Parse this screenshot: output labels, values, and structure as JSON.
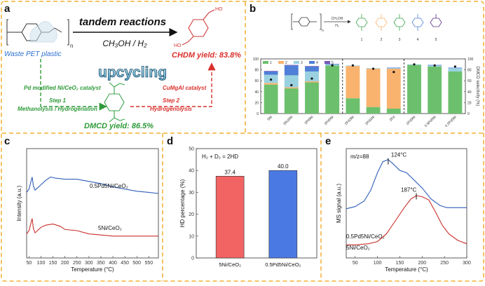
{
  "colors": {
    "frame": "#f2b134",
    "blue_text": "#2e6fcf",
    "green_text": "#2e9a39",
    "red_text": "#d9302c",
    "red_mol": "#d23a3a",
    "green_mol": "#3aa34a",
    "purple_mol": "#5b2c83",
    "bar_green": "#6cc06d",
    "bar_orange": "#f9b36e",
    "bar_lightblue": "#9ad1e0",
    "bar_blue": "#4f7fd6",
    "bar_purple": "#7a5ab8",
    "curve_blue": "#2f5db8",
    "curve_red": "#c8302c",
    "bar_red_fill": "#f26363",
    "bar_blue_fill": "#4b79e3"
  },
  "panel_a": {
    "label": "a",
    "reaction_title": "tandem reactions",
    "reaction_condition": "CH₃OH / H₂",
    "waste_label": "Waste PET plastic",
    "polymer_subscript": "n",
    "chdm_yield": "CHDM yield: 83.8%",
    "center_word": "upcycling",
    "step1_catalyst": "Pd modified Ni/CeO₂ catalyst",
    "step1_title": "Step 1",
    "step1_desc": "Methanolysis / Hydrogenation",
    "step2_catalyst": "CuMgAl catalyst",
    "step2_title": "Step 2",
    "step2_desc": "Hydrogenolysis",
    "dmcd_yield": "DMCD yield: 86.5%"
  },
  "panel_b": {
    "label": "b",
    "scheme_condition_top": "CH₃OH",
    "scheme_condition_bottom": "H₂",
    "scheme_subscript": "n",
    "product_numbers": [
      "1",
      "2",
      "3",
      "4",
      "5"
    ],
    "chart_data": {
      "type": "bar",
      "stacked": true,
      "categories": [
        "5Ni",
        "2Ru5Ni",
        "2Pt5Ni",
        "2Pd5Ni",
        "2Pd3Ni",
        "2Pd1Ni",
        "2Pd",
        "1Pd5Ni",
        "0.5Pd5Ni",
        "0.2Pd5Ni"
      ],
      "legend": [
        "1",
        "2",
        "3",
        "4",
        "5"
      ],
      "legend_position": "top-left",
      "ylabel_left": "",
      "ylabel_right": "DMCD selectivity (%)",
      "ylim": [
        0,
        100
      ],
      "yticks": [
        0,
        20,
        40,
        60,
        80,
        100
      ],
      "series": [
        {
          "name": "1",
          "values": [
            53,
            46,
            57,
            88,
            28,
            12,
            9,
            89,
            86,
            77
          ]
        },
        {
          "name": "2",
          "values": [
            3,
            2,
            2,
            0,
            59,
            70,
            73,
            0,
            0,
            0
          ]
        },
        {
          "name": "3",
          "values": [
            15,
            22,
            18,
            2,
            1,
            1,
            1,
            1,
            2,
            6
          ]
        },
        {
          "name": "4",
          "values": [
            6,
            18,
            9,
            1,
            0,
            0,
            1,
            0,
            1,
            1
          ]
        },
        {
          "name": "5",
          "values": [
            1,
            1,
            1,
            0,
            0,
            0,
            0,
            0,
            0,
            0
          ]
        }
      ],
      "selectivity": [
        62,
        52,
        64,
        88,
        88,
        82,
        76,
        90,
        88,
        86
      ],
      "group_dividers_after": [
        3,
        6
      ]
    }
  },
  "panel_c": {
    "label": "c",
    "chart_data": {
      "type": "line",
      "xlabel": "Temperature (°C)",
      "ylabel": "Intensity (a.u.)",
      "xlim": [
        40,
        590
      ],
      "xticks": [
        50,
        100,
        150,
        200,
        250,
        300,
        350,
        400,
        450,
        500,
        550
      ],
      "series": [
        {
          "name": "0.5Pd5Ni/CeO₂",
          "x": [
            40,
            50,
            58,
            63,
            68,
            75,
            85,
            100,
            120,
            140,
            160,
            200,
            250,
            300,
            350,
            400,
            450,
            500,
            550,
            590
          ],
          "y": [
            0.6,
            0.63,
            0.7,
            0.74,
            0.66,
            0.62,
            0.64,
            0.67,
            0.71,
            0.74,
            0.73,
            0.72,
            0.72,
            0.7,
            0.68,
            0.65,
            0.63,
            0.61,
            0.6,
            0.59
          ]
        },
        {
          "name": "5Ni/CeO₂",
          "x": [
            40,
            50,
            58,
            63,
            68,
            75,
            85,
            100,
            120,
            150,
            180,
            200,
            250,
            300,
            350,
            400,
            450,
            500,
            550,
            590
          ],
          "y": [
            0.22,
            0.25,
            0.32,
            0.36,
            0.27,
            0.23,
            0.25,
            0.28,
            0.3,
            0.31,
            0.29,
            0.26,
            0.25,
            0.22,
            0.21,
            0.2,
            0.2,
            0.2,
            0.2,
            0.2
          ]
        }
      ]
    }
  },
  "panel_d": {
    "label": "d",
    "chart_data": {
      "type": "bar",
      "title": "H₂ + D₂ = 2HD",
      "categories": [
        "5Ni/CeO₂",
        "0.5Pd5Ni/CeO₂"
      ],
      "values": [
        37.4,
        40.0
      ],
      "value_labels": [
        "37.4",
        "40.0"
      ],
      "xlabel": "",
      "ylabel": "HD percentage (%)",
      "ylim": [
        0,
        50
      ],
      "yticks": [
        0,
        10,
        20,
        30,
        40,
        50
      ]
    }
  },
  "panel_e": {
    "label": "e",
    "chart_data": {
      "type": "line",
      "annotation": "m/z=88",
      "xlabel": "Temperature (°C)",
      "ylabel": "MS signal (a.u.)",
      "xlim": [
        30,
        300
      ],
      "xticks": [
        50,
        100,
        150,
        200,
        250,
        300
      ],
      "peak_labels": [
        {
          "text": "124°C",
          "x": 124,
          "y": 0.9
        },
        {
          "text": "187°C",
          "x": 187,
          "y": 0.58
        }
      ],
      "series": [
        {
          "name": "0.5Pd5Ni/CeO₂",
          "x": [
            30,
            50,
            70,
            85,
            100,
            112,
            124,
            135,
            150,
            165,
            180,
            200,
            220,
            240,
            255,
            270,
            285,
            300
          ],
          "y": [
            0.45,
            0.47,
            0.52,
            0.62,
            0.78,
            0.88,
            0.9,
            0.86,
            0.8,
            0.78,
            0.72,
            0.64,
            0.54,
            0.48,
            0.46,
            0.46,
            0.46,
            0.46
          ]
        },
        {
          "name": "5Ni/CeO₂",
          "x": [
            30,
            50,
            80,
            100,
            120,
            140,
            160,
            175,
            187,
            200,
            215,
            230,
            245,
            260,
            280,
            300
          ],
          "y": [
            0.12,
            0.12,
            0.13,
            0.15,
            0.22,
            0.34,
            0.46,
            0.54,
            0.57,
            0.56,
            0.53,
            0.42,
            0.3,
            0.22,
            0.16,
            0.13
          ]
        }
      ]
    }
  }
}
